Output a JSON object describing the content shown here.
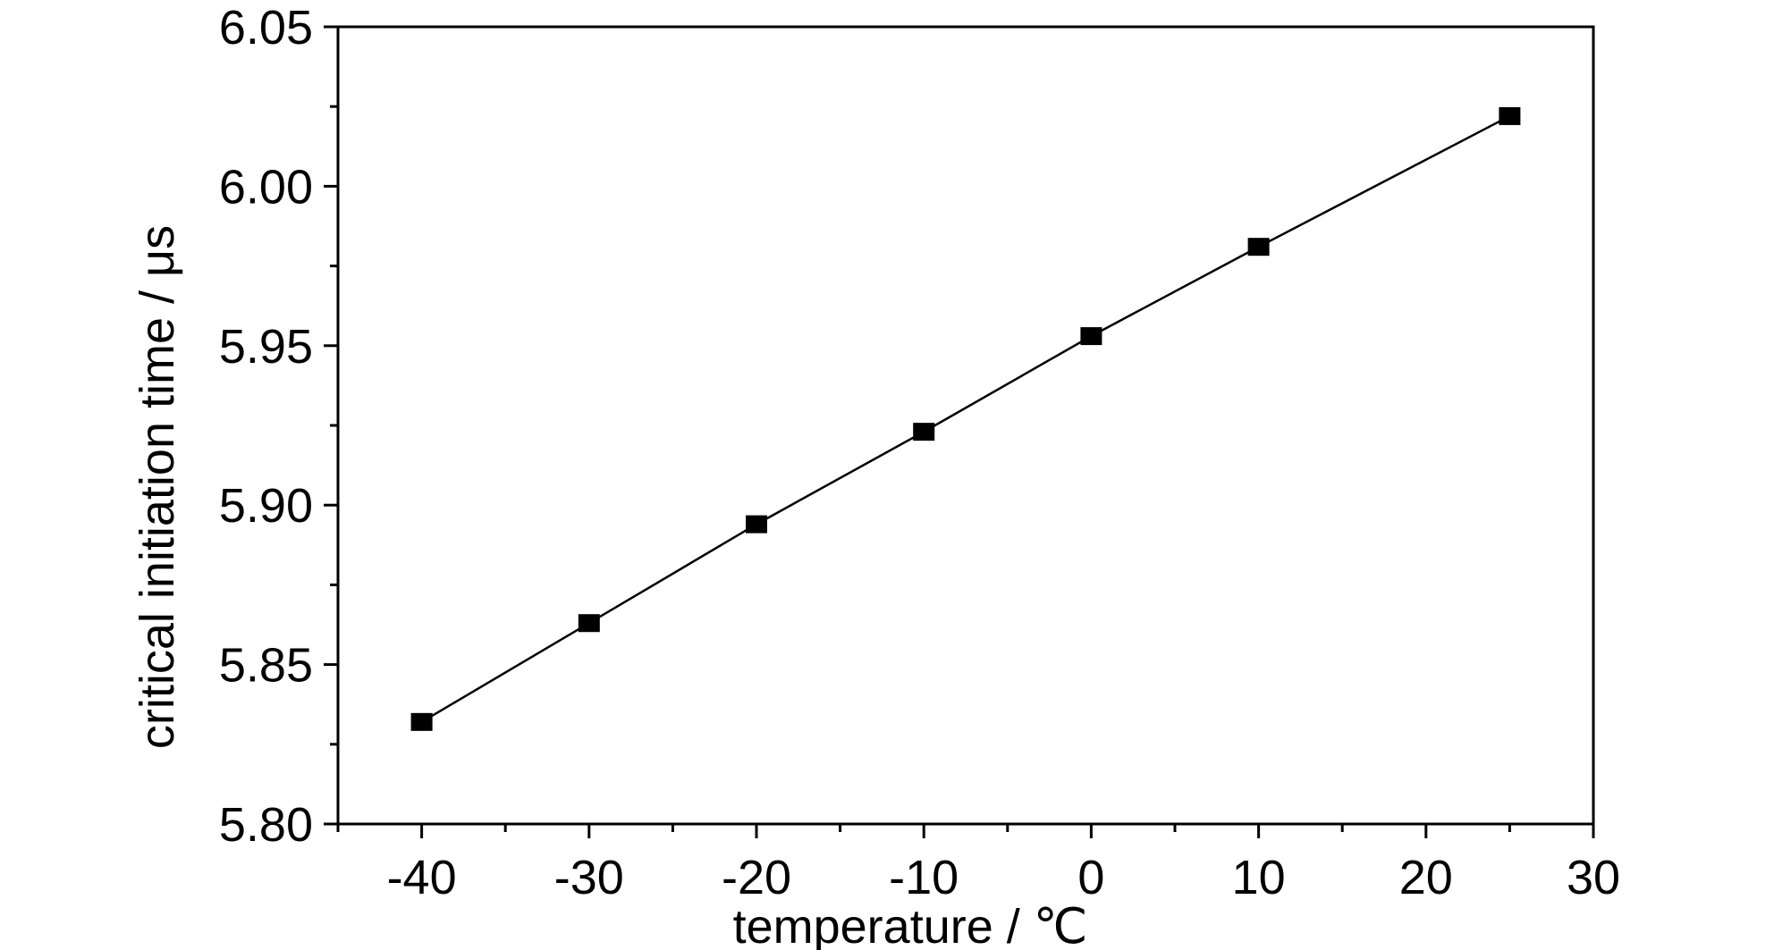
{
  "chart_data": {
    "type": "line",
    "xlabel": "temperature / ℃",
    "ylabel": "critical initiation time / μs",
    "xlim": [
      -45,
      30
    ],
    "ylim": [
      5.8,
      6.05
    ],
    "x_ticks": [
      -40,
      -30,
      -20,
      -10,
      0,
      10,
      20,
      30
    ],
    "x_tick_labels": [
      "-40",
      "-30",
      "-20",
      "-10",
      "0",
      "10",
      "20",
      "30"
    ],
    "y_ticks": [
      5.8,
      5.85,
      5.9,
      5.95,
      6.0,
      6.05
    ],
    "y_tick_labels": [
      "5.80",
      "5.85",
      "5.90",
      "5.95",
      "6.00",
      "6.05"
    ],
    "grid": false,
    "series": [
      {
        "x": [
          -40,
          -30,
          -20,
          -10,
          0,
          10,
          25
        ],
        "y": [
          5.832,
          5.863,
          5.894,
          5.923,
          5.953,
          5.981,
          6.022
        ],
        "marker": "square",
        "color": "#000000"
      }
    ]
  }
}
